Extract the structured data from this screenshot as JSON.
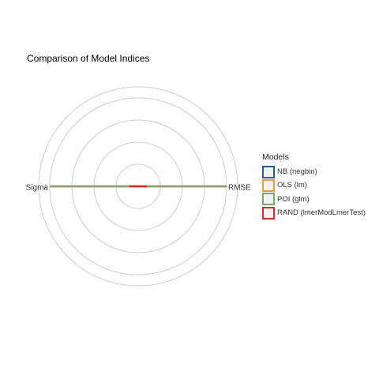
{
  "chart_data": {
    "type": "radar",
    "title": "Comparison of Model Indices",
    "axes": [
      "RMSE",
      "Sigma"
    ],
    "grid_levels": 5,
    "legend": {
      "title": "Models",
      "placement": "right"
    },
    "series": [
      {
        "name": "NB (negbin)",
        "color": "#1f5f9f",
        "values": [
          1.0,
          1.0
        ]
      },
      {
        "name": "OLS (lm)",
        "color": "#f29a3a",
        "values": [
          1.0,
          1.0
        ]
      },
      {
        "name": "POI (glm)",
        "color": "#7aaa6a",
        "values": [
          1.0,
          1.0
        ]
      },
      {
        "name": "RAND (lmerModLmerTest)",
        "color": "#d62b2b",
        "values": [
          0.1,
          0.1
        ]
      }
    ]
  }
}
